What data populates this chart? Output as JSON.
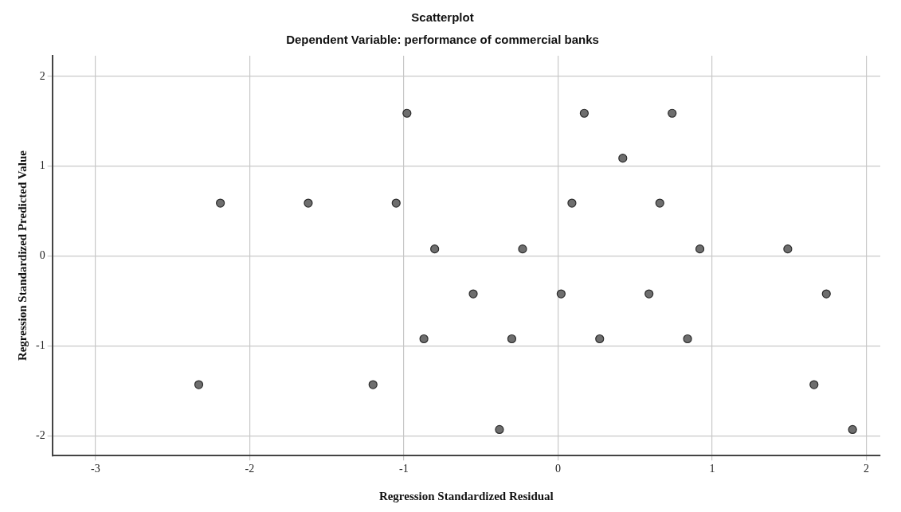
{
  "chart_data": {
    "type": "scatter",
    "title": "Scatterplot",
    "subtitle": "Dependent Variable: performance of commercial banks",
    "xlabel": "Regression Standardized Residual",
    "ylabel": "Regression Standardized Predicted Value",
    "series": [
      {
        "color": "#6e6e6e",
        "x": [
          -2.33,
          -2.19,
          -1.62,
          -1.05,
          -0.98,
          -0.8,
          -0.87,
          -1.2,
          -0.55,
          -0.38,
          -0.3,
          -0.23,
          0.02,
          0.09,
          0.17,
          0.27,
          0.42,
          0.59,
          0.66,
          0.74,
          0.84,
          0.92,
          1.49,
          1.66,
          1.74,
          1.91
        ],
        "values": [
          -1.43,
          0.59,
          0.59,
          0.59,
          1.59,
          0.08,
          -0.92,
          -1.43,
          -0.42,
          -1.93,
          -0.92,
          0.08,
          -0.42,
          0.59,
          1.59,
          -0.92,
          1.09,
          -0.42,
          0.59,
          1.59,
          -0.92,
          0.08,
          0.08,
          -1.43,
          -0.42,
          -1.93
        ]
      }
    ],
    "xlim": [
      -3.28,
      2.09
    ],
    "xticks": [
      -3,
      -2,
      -1,
      0,
      1,
      2
    ],
    "ylim": [
      -2.22,
      2.23
    ],
    "yticks": [
      -2,
      -1,
      0,
      1,
      2
    ],
    "grid": true,
    "legend": false,
    "marker": "circle"
  }
}
